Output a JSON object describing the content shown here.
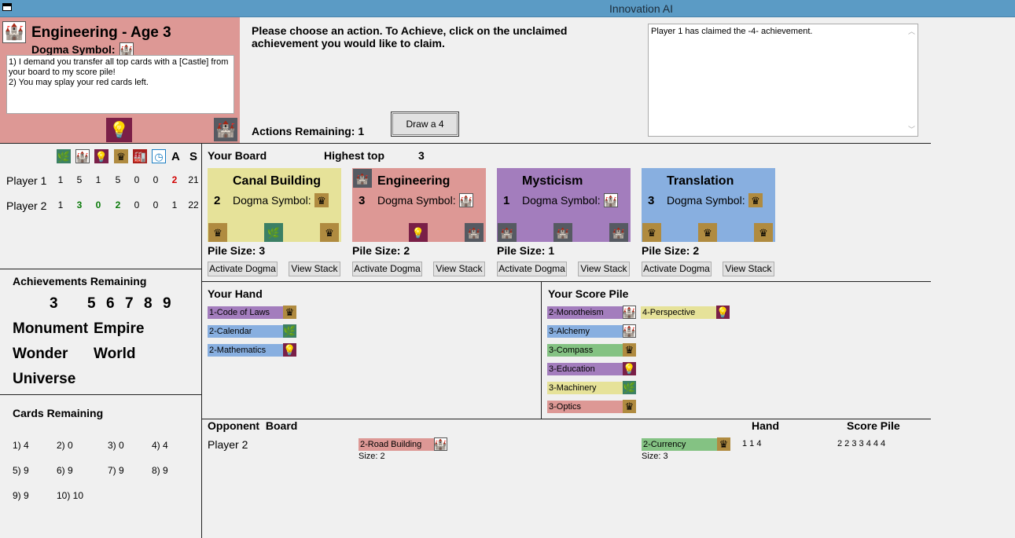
{
  "window": {
    "title": "Innovation AI"
  },
  "current_card": {
    "title": "Engineering - Age 3",
    "dogma_label": "Dogma Symbol:",
    "dogma_text_1": "1) I demand you transfer all top cards with a [Castle] from your board to my score pile!",
    "dogma_text_2": "2) You may splay your red cards left."
  },
  "prompt": {
    "line1": "Please choose an action.  To Achieve, click on the unclaimed",
    "line2": "achievement you would like to claim.",
    "actions_remaining": "Actions Remaining: 1",
    "draw_button": "Draw a 4"
  },
  "log": {
    "text": "Player 1 has claimed the -4- achievement."
  },
  "stats": {
    "headers": {
      "a": "A",
      "s": "S"
    },
    "icons": [
      "leaf-icon",
      "castle-icon",
      "bulb-icon",
      "crown-icon",
      "factory-icon",
      "clock-icon"
    ],
    "rows": [
      {
        "name": "Player 1",
        "v": [
          "1",
          "5",
          "1",
          "5",
          "0",
          "0",
          "2",
          "21"
        ]
      },
      {
        "name": "Player 2",
        "v": [
          "1",
          "3",
          "0",
          "2",
          "0",
          "0",
          "1",
          "22"
        ]
      }
    ]
  },
  "achievements": {
    "heading": "Achievements Remaining",
    "nums": [
      "3",
      "5",
      "6",
      "7",
      "8",
      "9"
    ],
    "special": [
      "Monument",
      "Empire",
      "Wonder",
      "World",
      "Universe"
    ]
  },
  "cards_remaining": {
    "heading": "Cards Remaining",
    "items": [
      "1) 4",
      "2) 0",
      "3) 0",
      "4) 4",
      "5) 9",
      "6) 9",
      "7) 9",
      "8) 9",
      "9) 9",
      "10) 10"
    ]
  },
  "board": {
    "heading": "Your Board",
    "highest_label": "Highest top",
    "highest_value": "3",
    "dogma_label": "Dogma Symbol:",
    "activate_label": "Activate Dogma",
    "view_label": "View Stack",
    "cards": [
      {
        "name": "Canal Building",
        "age": "2",
        "pile": "Pile Size: 3",
        "color": "#e6e299"
      },
      {
        "name": "Engineering",
        "age": "3",
        "pile": "Pile Size: 2",
        "color": "#dd9895"
      },
      {
        "name": "Mysticism",
        "age": "1",
        "pile": "Pile Size: 1",
        "color": "#a37dbd"
      },
      {
        "name": "Translation",
        "age": "3",
        "pile": "Pile Size: 2",
        "color": "#88afe0"
      }
    ]
  },
  "hand": {
    "heading": "Your Hand",
    "cards": [
      "1-Code of Laws",
      "2-Calendar",
      "2-Mathematics"
    ]
  },
  "score_pile": {
    "heading": "Your Score Pile",
    "cards": [
      "2-Monotheism",
      "3-Alchemy",
      "3-Compass",
      "3-Education",
      "3-Machinery",
      "3-Optics",
      "4-Perspective"
    ]
  },
  "opponent": {
    "heading": "Opponent  Board",
    "hand_heading": "Hand",
    "score_heading": "Score Pile",
    "name": "Player 2",
    "cards": [
      {
        "name": "2-Road Building",
        "size": "Size: 2"
      },
      {
        "name": "2-Currency",
        "size": "Size: 3"
      }
    ],
    "hand": "1 1 4",
    "score": "2 2 3 3 4 4 4"
  }
}
